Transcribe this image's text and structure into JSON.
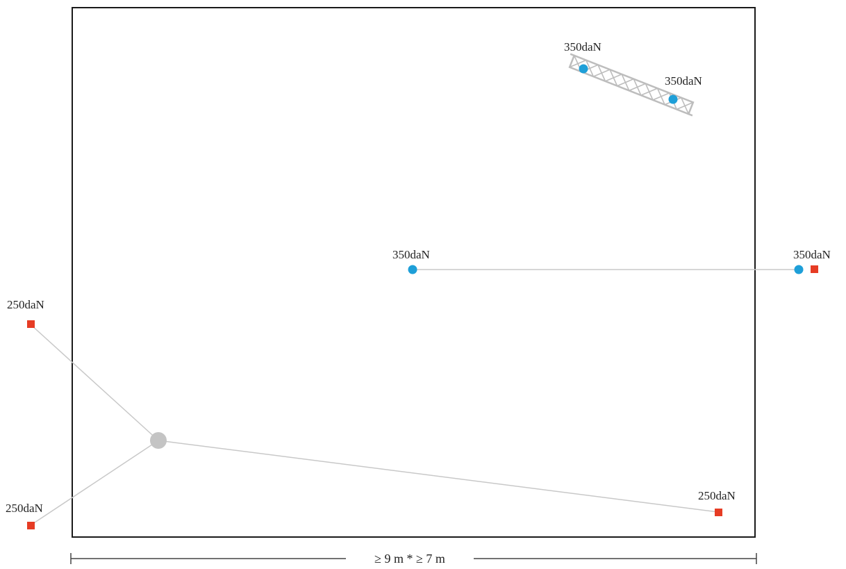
{
  "colors": {
    "frame": "#1a1a1a",
    "rope": "#c8c8c8",
    "blue_point": "#1e9fd8",
    "red_anchor": "#e63c24",
    "hub": "#c4c4c4",
    "truss": "#bdbdbd"
  },
  "icons": {
    "blue_point": "blue-circle-load-point",
    "red_anchor": "red-square-anchor",
    "hub": "grey-circle-hub",
    "truss": "lattice-truss"
  },
  "labels": {
    "truss_left": "350daN",
    "truss_right": "350daN",
    "line_left": "350daN",
    "line_right": "350daN",
    "anchor_top_left": "250daN",
    "anchor_bottom_left": "250daN",
    "anchor_bottom_right": "250daN"
  },
  "dimension": {
    "text": "≥ 9 m * ≥ 7 m"
  }
}
